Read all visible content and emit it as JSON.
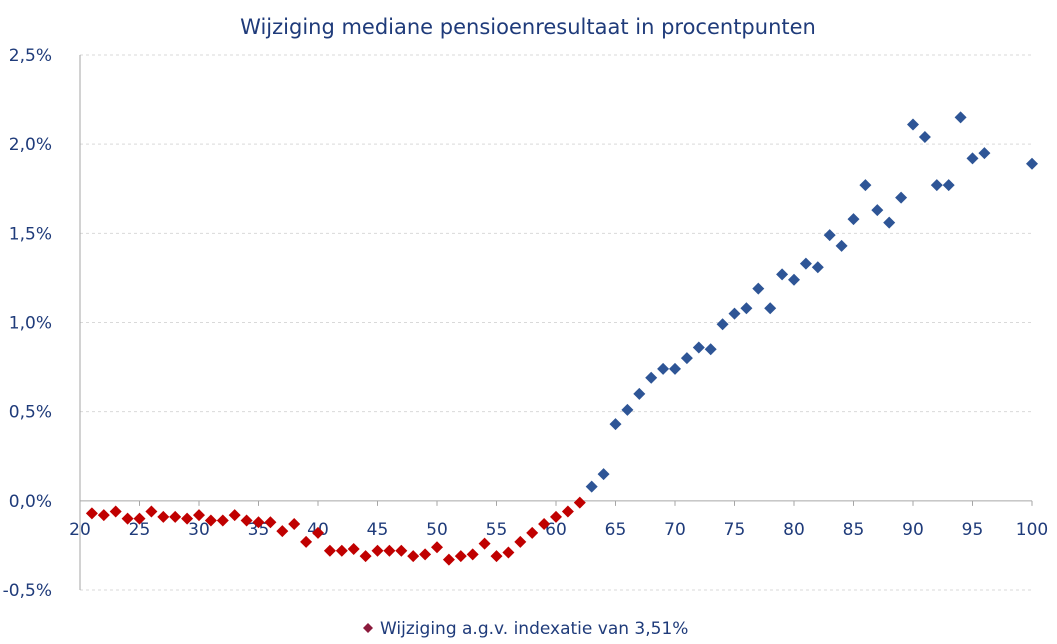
{
  "chart_data": {
    "type": "scatter",
    "title": "Wijziging mediane pensioenresultaat in procentpunten",
    "xlabel": "",
    "ylabel": "",
    "xlim": [
      20,
      100
    ],
    "ylim": [
      -0.5,
      2.5
    ],
    "x_ticks": [
      "20",
      "25",
      "30",
      "35",
      "40",
      "45",
      "50",
      "55",
      "60",
      "65",
      "70",
      "75",
      "80",
      "85",
      "90",
      "95",
      "100"
    ],
    "y_ticks": [
      "-0,5%",
      "0,0%",
      "0,5%",
      "1,0%",
      "1,5%",
      "2,0%",
      "2,5%"
    ],
    "y_tick_values": [
      -0.5,
      0.0,
      0.5,
      1.0,
      1.5,
      2.0,
      2.5
    ],
    "grid": "horizontal",
    "legend_position": "bottom",
    "series": [
      {
        "name": "Wijziging a.g.v. indexatie van 3,51%",
        "marker": "diamond",
        "color_negative": "#c00000",
        "color_positive": "#2e5596",
        "legend_color": "#8b1a3c",
        "points": [
          [
            21,
            -0.07
          ],
          [
            22,
            -0.08
          ],
          [
            23,
            -0.06
          ],
          [
            24,
            -0.1
          ],
          [
            25,
            -0.1
          ],
          [
            26,
            -0.06
          ],
          [
            27,
            -0.09
          ],
          [
            28,
            -0.09
          ],
          [
            29,
            -0.1
          ],
          [
            30,
            -0.08
          ],
          [
            31,
            -0.11
          ],
          [
            32,
            -0.11
          ],
          [
            33,
            -0.08
          ],
          [
            34,
            -0.11
          ],
          [
            35,
            -0.12
          ],
          [
            36,
            -0.12
          ],
          [
            37,
            -0.17
          ],
          [
            38,
            -0.13
          ],
          [
            39,
            -0.23
          ],
          [
            40,
            -0.18
          ],
          [
            41,
            -0.28
          ],
          [
            42,
            -0.28
          ],
          [
            43,
            -0.27
          ],
          [
            44,
            -0.31
          ],
          [
            45,
            -0.28
          ],
          [
            46,
            -0.28
          ],
          [
            47,
            -0.28
          ],
          [
            48,
            -0.31
          ],
          [
            49,
            -0.3
          ],
          [
            50,
            -0.26
          ],
          [
            51,
            -0.33
          ],
          [
            52,
            -0.31
          ],
          [
            53,
            -0.3
          ],
          [
            54,
            -0.24
          ],
          [
            55,
            -0.31
          ],
          [
            56,
            -0.29
          ],
          [
            57,
            -0.23
          ],
          [
            58,
            -0.18
          ],
          [
            59,
            -0.13
          ],
          [
            60,
            -0.09
          ],
          [
            61,
            -0.06
          ],
          [
            62,
            -0.01
          ],
          [
            63,
            0.08
          ],
          [
            64,
            0.15
          ],
          [
            65,
            0.43
          ],
          [
            66,
            0.51
          ],
          [
            67,
            0.6
          ],
          [
            68,
            0.69
          ],
          [
            69,
            0.74
          ],
          [
            70,
            0.74
          ],
          [
            71,
            0.8
          ],
          [
            72,
            0.86
          ],
          [
            73,
            0.85
          ],
          [
            74,
            0.99
          ],
          [
            75,
            1.05
          ],
          [
            76,
            1.08
          ],
          [
            77,
            1.19
          ],
          [
            78,
            1.08
          ],
          [
            79,
            1.27
          ],
          [
            80,
            1.24
          ],
          [
            81,
            1.33
          ],
          [
            82,
            1.31
          ],
          [
            83,
            1.49
          ],
          [
            84,
            1.43
          ],
          [
            85,
            1.58
          ],
          [
            86,
            1.77
          ],
          [
            87,
            1.63
          ],
          [
            88,
            1.56
          ],
          [
            89,
            1.7
          ],
          [
            90,
            2.11
          ],
          [
            91,
            2.04
          ],
          [
            92,
            1.77
          ],
          [
            93,
            1.77
          ],
          [
            94,
            2.15
          ],
          [
            95,
            1.92
          ],
          [
            96,
            1.95
          ],
          [
            100,
            1.89
          ]
        ]
      }
    ]
  }
}
